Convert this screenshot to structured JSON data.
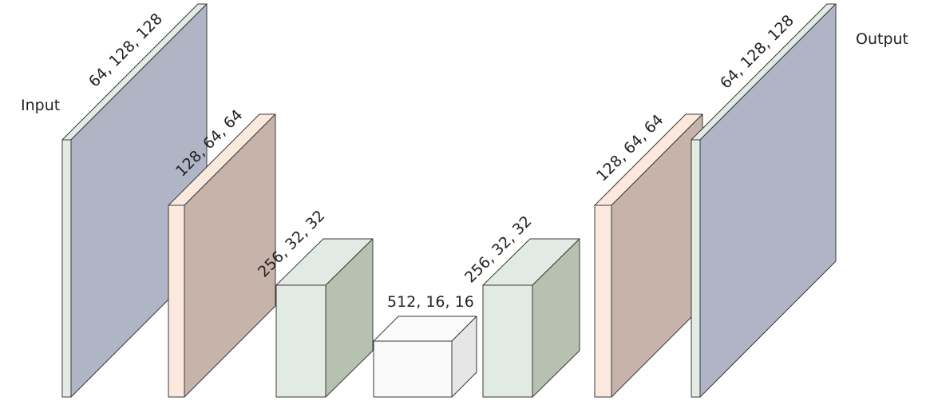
{
  "labels": {
    "input": "Input",
    "output": "Output"
  },
  "blocks": [
    {
      "id": "enc1",
      "dims": "64, 128, 128",
      "front": "#e2ece4",
      "top": "#e2ece4",
      "side": "#b0b5c6"
    },
    {
      "id": "enc2",
      "dims": "128, 64, 64",
      "front": "#fbe9de",
      "top": "#fbe9de",
      "side": "#c7b3a9"
    },
    {
      "id": "enc3",
      "dims": "256, 32, 32",
      "front": "#e2ebe3",
      "top": "#e2ebe3",
      "side": "#b6c1b0"
    },
    {
      "id": "bottleneck",
      "dims": "512, 16, 16",
      "front": "#fafafa",
      "top": "#fbfbfb",
      "side": "#e6e6e6"
    },
    {
      "id": "dec3",
      "dims": "256, 32, 32",
      "front": "#e2ebe3",
      "top": "#e2ebe3",
      "side": "#b6c1b0"
    },
    {
      "id": "dec2",
      "dims": "128, 64, 64",
      "front": "#fbe9de",
      "top": "#fbe9de",
      "side": "#c7b3a9"
    },
    {
      "id": "dec1",
      "dims": "64, 128, 128",
      "front": "#e2ece4",
      "top": "#e2ece4",
      "side": "#b0b5c6"
    }
  ]
}
